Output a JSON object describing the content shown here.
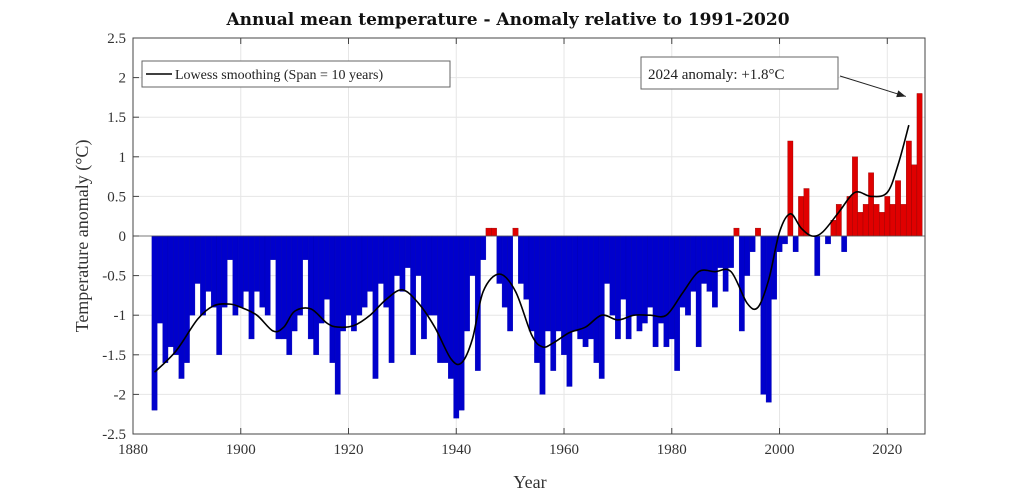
{
  "chart_data": {
    "type": "bar",
    "title": "Annual mean temperature - Anomaly relative to 1991-2020",
    "xlabel": "Year",
    "ylabel": "Temperature anomaly (°C)",
    "xlim": [
      1880,
      2027
    ],
    "ylim": [
      -2.5,
      2.5
    ],
    "xticks": [
      1880,
      1900,
      1920,
      1940,
      1960,
      1980,
      2000,
      2020
    ],
    "yticks": [
      -2.5,
      -2,
      -1.5,
      -1,
      -0.5,
      0,
      0.5,
      1,
      1.5,
      2,
      2.5
    ],
    "ytick_labels": [
      "-2.5",
      "-2",
      "-1.5",
      "-1",
      "-0.5",
      "0",
      "0.5",
      "1",
      "1.5",
      "2",
      "2.5"
    ],
    "grid": true,
    "positive_color": "#e00000",
    "negative_color": "#0000cc",
    "x_start": 1884,
    "values": [
      -2.2,
      -1.1,
      -1.6,
      -1.4,
      -1.5,
      -1.8,
      -1.6,
      -1.0,
      -0.6,
      -1.0,
      -0.7,
      -0.9,
      -1.5,
      -0.9,
      -0.3,
      -1.0,
      -0.9,
      -0.7,
      -1.3,
      -0.7,
      -0.9,
      -1.0,
      -0.3,
      -1.3,
      -1.3,
      -1.5,
      -1.2,
      -1.0,
      -0.3,
      -1.3,
      -1.5,
      -1.1,
      -0.8,
      -1.6,
      -2.0,
      -1.2,
      -1.0,
      -1.2,
      -1.0,
      -0.9,
      -0.7,
      -1.8,
      -0.6,
      -0.9,
      -1.6,
      -0.5,
      -0.7,
      -0.4,
      -1.5,
      -0.5,
      -1.3,
      -1.0,
      -1.0,
      -1.6,
      -1.6,
      -1.8,
      -2.3,
      -2.2,
      -1.2,
      -0.5,
      -1.7,
      -0.3,
      0.1,
      0.1,
      -0.6,
      -0.9,
      -1.2,
      0.1,
      -0.6,
      -0.8,
      -1.2,
      -1.6,
      -2.0,
      -1.2,
      -1.7,
      -1.2,
      -1.5,
      -1.9,
      -1.2,
      -1.3,
      -1.4,
      -1.3,
      -1.6,
      -1.8,
      -0.6,
      -1.0,
      -1.3,
      -0.8,
      -1.3,
      -1.0,
      -1.2,
      -1.1,
      -0.9,
      -1.4,
      -1.1,
      -1.4,
      -1.3,
      -1.7,
      -0.9,
      -1.0,
      -0.7,
      -1.4,
      -0.6,
      -0.7,
      -0.9,
      -0.4,
      -0.7,
      -0.4,
      0.1,
      -1.2,
      -0.5,
      -0.2,
      0.1,
      -2.0,
      -2.1,
      -0.8,
      -0.2,
      -0.1,
      1.2,
      -0.2,
      0.5,
      0.6,
      0.0,
      -0.5,
      0.0,
      -0.1,
      0.2,
      0.4,
      -0.2,
      0.5,
      1.0,
      0.3,
      0.4,
      0.8,
      0.4,
      0.3,
      0.5,
      0.4,
      0.7,
      0.4,
      1.2,
      0.9,
      1.8
    ],
    "smoothing": {
      "name": "Lowess smoothing (Span = 10 years)",
      "color": "#000000",
      "x": [
        1884,
        1888,
        1892,
        1895,
        1898,
        1900,
        1903,
        1906,
        1908,
        1910,
        1913,
        1916,
        1918,
        1921,
        1924,
        1927,
        1930,
        1933,
        1936,
        1939,
        1941,
        1943,
        1945,
        1948,
        1951,
        1954,
        1956,
        1958,
        1961,
        1964,
        1967,
        1970,
        1973,
        1976,
        1979,
        1982,
        1985,
        1988,
        1991,
        1994,
        1996,
        1998,
        2000,
        2002,
        2004,
        2006,
        2008,
        2011,
        2014,
        2017,
        2020,
        2022,
        2024
      ],
      "y": [
        -1.72,
        -1.45,
        -1.05,
        -0.88,
        -0.86,
        -0.9,
        -1.0,
        -1.2,
        -1.15,
        -0.95,
        -0.92,
        -1.1,
        -1.15,
        -1.13,
        -1.0,
        -0.8,
        -0.68,
        -0.85,
        -1.15,
        -1.55,
        -1.6,
        -1.3,
        -0.7,
        -0.48,
        -0.7,
        -1.25,
        -1.4,
        -1.35,
        -1.22,
        -1.15,
        -1.0,
        -1.06,
        -1.0,
        -1.0,
        -1.0,
        -0.72,
        -0.45,
        -0.45,
        -0.45,
        -0.85,
        -0.9,
        -0.55,
        0.05,
        0.28,
        0.1,
        0.0,
        0.05,
        0.3,
        0.55,
        0.5,
        0.55,
        0.9,
        1.4
      ]
    },
    "legend": {
      "label": "Lowess smoothing (Span = 10 years)",
      "position": "top-left"
    },
    "annotation": {
      "text": "2024 anomaly: +1.8°C",
      "target_year": 2024,
      "target_value": 1.8,
      "position": "top-right"
    }
  }
}
